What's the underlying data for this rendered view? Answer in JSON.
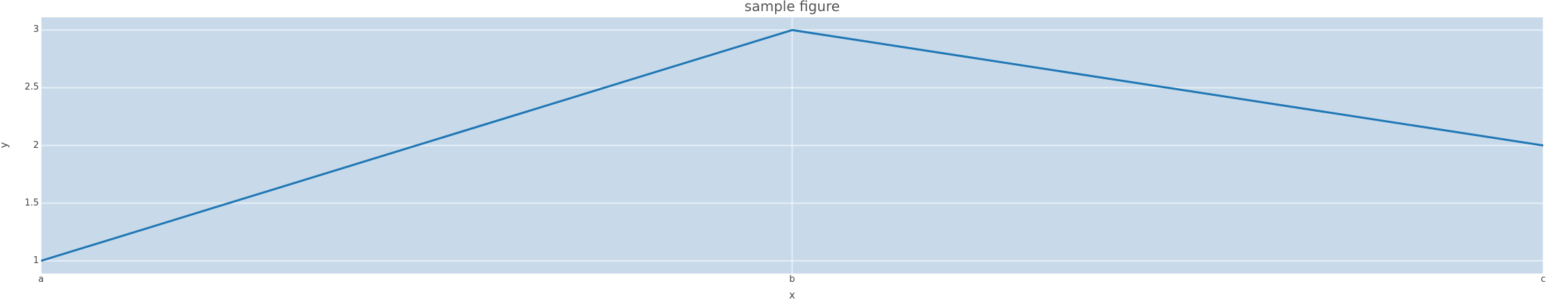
{
  "chart_data": {
    "type": "line",
    "title": "sample figure",
    "xlabel": "x",
    "ylabel": "y",
    "categories": [
      "a",
      "b",
      "c"
    ],
    "series": [
      {
        "values": [
          1,
          3,
          2
        ],
        "color": "#1f77b4",
        "line_width": 3
      }
    ],
    "ylim": [
      0.89,
      3.11
    ],
    "yticks": [
      1,
      1.5,
      2,
      2.5,
      3
    ],
    "ytick_labels": [
      "1",
      "1.5",
      "2",
      "2.5",
      "3"
    ],
    "grid": true,
    "legend_visible": false,
    "colors": {
      "plot_bg": "#c8daea",
      "paper_bg": "#ffffff",
      "gridline": "rgba(255,255,255,0.55)",
      "title_text": "#555555",
      "tick_text": "#444444",
      "axis_title_text": "#4a4a4a"
    }
  }
}
